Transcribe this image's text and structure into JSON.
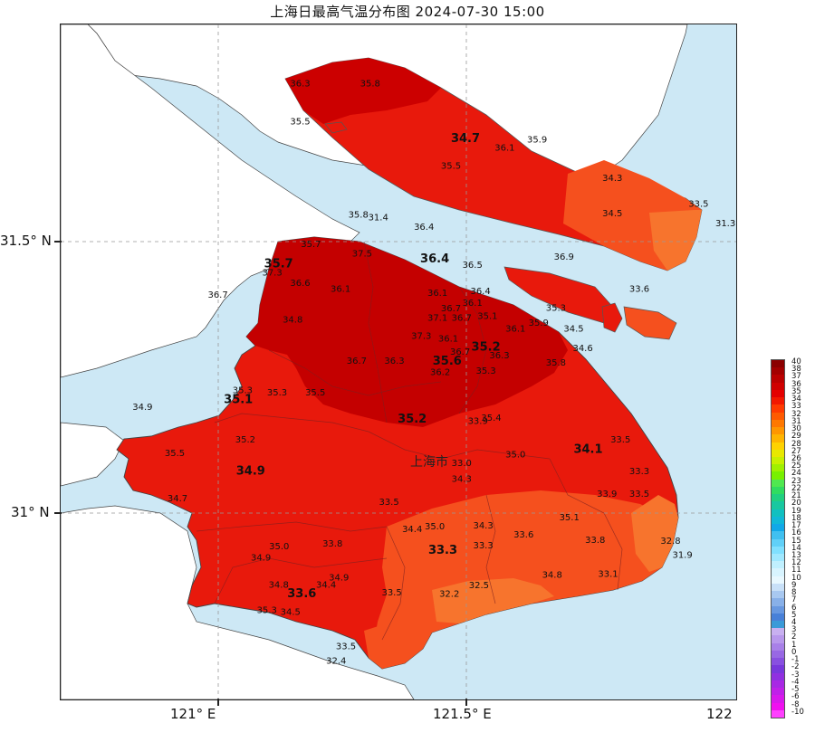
{
  "title": "上海日最高气温分布图 2024-07-30 15:00",
  "axes": {
    "lat_labels": [
      "31.5° N",
      "31° N"
    ],
    "lon_labels": [
      "121° E",
      "121.5° E",
      "122"
    ]
  },
  "city_label": "上海市",
  "legend": {
    "values": [
      "40",
      "38",
      "37",
      "36",
      "35",
      "34",
      "33",
      "32",
      "31",
      "30",
      "29",
      "28",
      "27",
      "26",
      "25",
      "24",
      "23",
      "22",
      "21",
      "20",
      "19",
      "18",
      "17",
      "16",
      "15",
      "14",
      "13",
      "12",
      "11",
      "10",
      "9",
      "8",
      "7",
      "6",
      "5",
      "4",
      "3",
      "2",
      "1",
      "0",
      "-1",
      "-2",
      "-3",
      "-4",
      "-5",
      "-6",
      "-8",
      "-10"
    ],
    "colors": [
      "#8b0000",
      "#a30000",
      "#bb0000",
      "#d00000",
      "#e40000",
      "#f21800",
      "#ff3a00",
      "#ff5a00",
      "#ff7800",
      "#ff9600",
      "#ffb400",
      "#ffd200",
      "#e8e800",
      "#c8f000",
      "#a0f000",
      "#78f000",
      "#50e850",
      "#30dc60",
      "#20d080",
      "#18c8a0",
      "#10c0c0",
      "#10b8d8",
      "#10a8e8",
      "#40c0f0",
      "#60d0f8",
      "#80e0ff",
      "#a0e8ff",
      "#c0f0ff",
      "#d8f4ff",
      "#e8f8ff",
      "#c8e0f8",
      "#a8c8f0",
      "#88b0e8",
      "#6898e0",
      "#4880d8",
      "#3a9ad8",
      "#c8b0f0",
      "#b898ec",
      "#a880e8",
      "#9868e4",
      "#8850e0",
      "#7838dc",
      "#9030e0",
      "#a828e4",
      "#c020e8",
      "#d818ec",
      "#f010f0",
      "#ff40ff"
    ]
  },
  "colors": {
    "water": "#cde8f5",
    "land_outside": "#ffffff",
    "dark_red": "#c80000",
    "red": "#e81a0f",
    "mid_red": "#f22814",
    "orange_red": "#f5501e",
    "orange": "#f7742d"
  },
  "stations": [
    {
      "v": "36.3",
      "lon": 121.19,
      "lat": 31.74
    },
    {
      "v": "35.8",
      "lon": 121.32,
      "lat": 31.74
    },
    {
      "v": "35.5",
      "lon": 121.19,
      "lat": 31.67
    },
    {
      "v": "34.7",
      "lon": 121.497,
      "lat": 31.637,
      "bold": true
    },
    {
      "v": "35.9",
      "lon": 121.63,
      "lat": 31.636
    },
    {
      "v": "36.1",
      "lon": 121.57,
      "lat": 31.621
    },
    {
      "v": "35.5",
      "lon": 121.47,
      "lat": 31.588
    },
    {
      "v": "34.3",
      "lon": 121.77,
      "lat": 31.565
    },
    {
      "v": "33.5",
      "lon": 121.93,
      "lat": 31.517
    },
    {
      "v": "34.5",
      "lon": 121.77,
      "lat": 31.5
    },
    {
      "v": "31.3",
      "lon": 121.98,
      "lat": 31.481
    },
    {
      "v": "35.8",
      "lon": 121.298,
      "lat": 31.497
    },
    {
      "v": "31.4",
      "lon": 121.335,
      "lat": 31.492
    },
    {
      "v": "36.4",
      "lon": 121.42,
      "lat": 31.475
    },
    {
      "v": "35.7",
      "lon": 121.21,
      "lat": 31.443
    },
    {
      "v": "37.5",
      "lon": 121.305,
      "lat": 31.425
    },
    {
      "v": "36.4",
      "lon": 121.44,
      "lat": 31.414,
      "bold": true
    },
    {
      "v": "35.7",
      "lon": 121.15,
      "lat": 31.405,
      "bold": true
    },
    {
      "v": "37.3",
      "lon": 121.138,
      "lat": 31.39
    },
    {
      "v": "36.5",
      "lon": 121.51,
      "lat": 31.404
    },
    {
      "v": "36.9",
      "lon": 121.68,
      "lat": 31.419
    },
    {
      "v": "36.6",
      "lon": 121.19,
      "lat": 31.371
    },
    {
      "v": "33.6",
      "lon": 121.82,
      "lat": 31.36
    },
    {
      "v": "36.1",
      "lon": 121.265,
      "lat": 31.36
    },
    {
      "v": "36.1",
      "lon": 121.445,
      "lat": 31.352
    },
    {
      "v": "36.4",
      "lon": 121.525,
      "lat": 31.356
    },
    {
      "v": "36.7",
      "lon": 121.037,
      "lat": 31.349
    },
    {
      "v": "36.1",
      "lon": 121.51,
      "lat": 31.334
    },
    {
      "v": "36.7",
      "lon": 121.47,
      "lat": 31.324
    },
    {
      "v": "35.3",
      "lon": 121.665,
      "lat": 31.325
    },
    {
      "v": "34.8",
      "lon": 121.176,
      "lat": 31.303
    },
    {
      "v": "37.1",
      "lon": 121.445,
      "lat": 31.306
    },
    {
      "v": "36.7",
      "lon": 121.49,
      "lat": 31.306
    },
    {
      "v": "35.1",
      "lon": 121.538,
      "lat": 31.31
    },
    {
      "v": "35.9",
      "lon": 121.633,
      "lat": 31.297
    },
    {
      "v": "34.5",
      "lon": 121.698,
      "lat": 31.286
    },
    {
      "v": "36.1",
      "lon": 121.59,
      "lat": 31.286
    },
    {
      "v": "37.3",
      "lon": 121.415,
      "lat": 31.273
    },
    {
      "v": "36.1",
      "lon": 121.465,
      "lat": 31.268
    },
    {
      "v": "35.2",
      "lon": 121.535,
      "lat": 31.251,
      "bold": true
    },
    {
      "v": "34.6",
      "lon": 121.715,
      "lat": 31.25
    },
    {
      "v": "36.7",
      "lon": 121.487,
      "lat": 31.243
    },
    {
      "v": "36.3",
      "lon": 121.56,
      "lat": 31.237
    },
    {
      "v": "36.7",
      "lon": 121.295,
      "lat": 31.227
    },
    {
      "v": "36.3",
      "lon": 121.365,
      "lat": 31.227
    },
    {
      "v": "35.6",
      "lon": 121.463,
      "lat": 31.225,
      "bold": true
    },
    {
      "v": "35.8",
      "lon": 121.665,
      "lat": 31.223
    },
    {
      "v": "36.2",
      "lon": 121.45,
      "lat": 31.206
    },
    {
      "v": "35.3",
      "lon": 121.535,
      "lat": 31.208
    },
    {
      "v": "35.3",
      "lon": 121.083,
      "lat": 31.172
    },
    {
      "v": "35.3",
      "lon": 121.147,
      "lat": 31.168
    },
    {
      "v": "35.5",
      "lon": 121.218,
      "lat": 31.168
    },
    {
      "v": "35.1",
      "lon": 121.075,
      "lat": 31.154,
      "bold": true
    },
    {
      "v": "34.9",
      "lon": 120.897,
      "lat": 31.141
    },
    {
      "v": "35.4",
      "lon": 121.545,
      "lat": 31.121
    },
    {
      "v": "35.2",
      "lon": 121.398,
      "lat": 31.118,
      "bold": true
    },
    {
      "v": "33.9",
      "lon": 121.52,
      "lat": 31.115
    },
    {
      "v": "35.2",
      "lon": 121.088,
      "lat": 31.081
    },
    {
      "v": "33.5",
      "lon": 121.785,
      "lat": 31.081
    },
    {
      "v": "35.5",
      "lon": 120.957,
      "lat": 31.056
    },
    {
      "v": "34.1",
      "lon": 121.725,
      "lat": 31.062,
      "bold": true
    },
    {
      "v": "35.0",
      "lon": 121.59,
      "lat": 31.053
    },
    {
      "v": "33.0",
      "lon": 121.49,
      "lat": 31.037
    },
    {
      "v": "34.9",
      "lon": 121.098,
      "lat": 31.021,
      "bold": true
    },
    {
      "v": "33.3",
      "lon": 121.82,
      "lat": 31.022
    },
    {
      "v": "34.3",
      "lon": 121.49,
      "lat": 31.008
    },
    {
      "v": "33.9",
      "lon": 121.76,
      "lat": 30.98
    },
    {
      "v": "33.5",
      "lon": 121.82,
      "lat": 30.98
    },
    {
      "v": "34.7",
      "lon": 120.962,
      "lat": 30.972
    },
    {
      "v": "33.5",
      "lon": 121.355,
      "lat": 30.965
    },
    {
      "v": "35.1",
      "lon": 121.69,
      "lat": 30.937
    },
    {
      "v": "35.0",
      "lon": 121.44,
      "lat": 30.92
    },
    {
      "v": "34.4",
      "lon": 121.398,
      "lat": 30.915
    },
    {
      "v": "34.3",
      "lon": 121.53,
      "lat": 30.922
    },
    {
      "v": "33.6",
      "lon": 121.605,
      "lat": 30.905
    },
    {
      "v": "33.8",
      "lon": 121.738,
      "lat": 30.895
    },
    {
      "v": "32.8",
      "lon": 121.878,
      "lat": 30.893
    },
    {
      "v": "33.8",
      "lon": 121.25,
      "lat": 30.888
    },
    {
      "v": "35.0",
      "lon": 121.151,
      "lat": 30.883
    },
    {
      "v": "33.3",
      "lon": 121.53,
      "lat": 30.885
    },
    {
      "v": "33.3",
      "lon": 121.455,
      "lat": 30.875,
      "bold": true
    },
    {
      "v": "34.9",
      "lon": 121.117,
      "lat": 30.862
    },
    {
      "v": "31.9",
      "lon": 121.9,
      "lat": 30.867
    },
    {
      "v": "34.9",
      "lon": 121.262,
      "lat": 30.825
    },
    {
      "v": "34.8",
      "lon": 121.658,
      "lat": 30.83
    },
    {
      "v": "33.1",
      "lon": 121.762,
      "lat": 30.832
    },
    {
      "v": "34.8",
      "lon": 121.15,
      "lat": 30.812
    },
    {
      "v": "34.4",
      "lon": 121.238,
      "lat": 30.812
    },
    {
      "v": "32.5",
      "lon": 121.522,
      "lat": 30.811
    },
    {
      "v": "33.6",
      "lon": 121.193,
      "lat": 30.794,
      "bold": true
    },
    {
      "v": "33.5",
      "lon": 121.36,
      "lat": 30.798
    },
    {
      "v": "32.2",
      "lon": 121.467,
      "lat": 30.795
    },
    {
      "v": "35.3",
      "lon": 121.128,
      "lat": 30.765
    },
    {
      "v": "34.5",
      "lon": 121.172,
      "lat": 30.762
    },
    {
      "v": "33.5",
      "lon": 121.275,
      "lat": 30.698
    },
    {
      "v": "32.4",
      "lon": 121.257,
      "lat": 30.671
    }
  ]
}
